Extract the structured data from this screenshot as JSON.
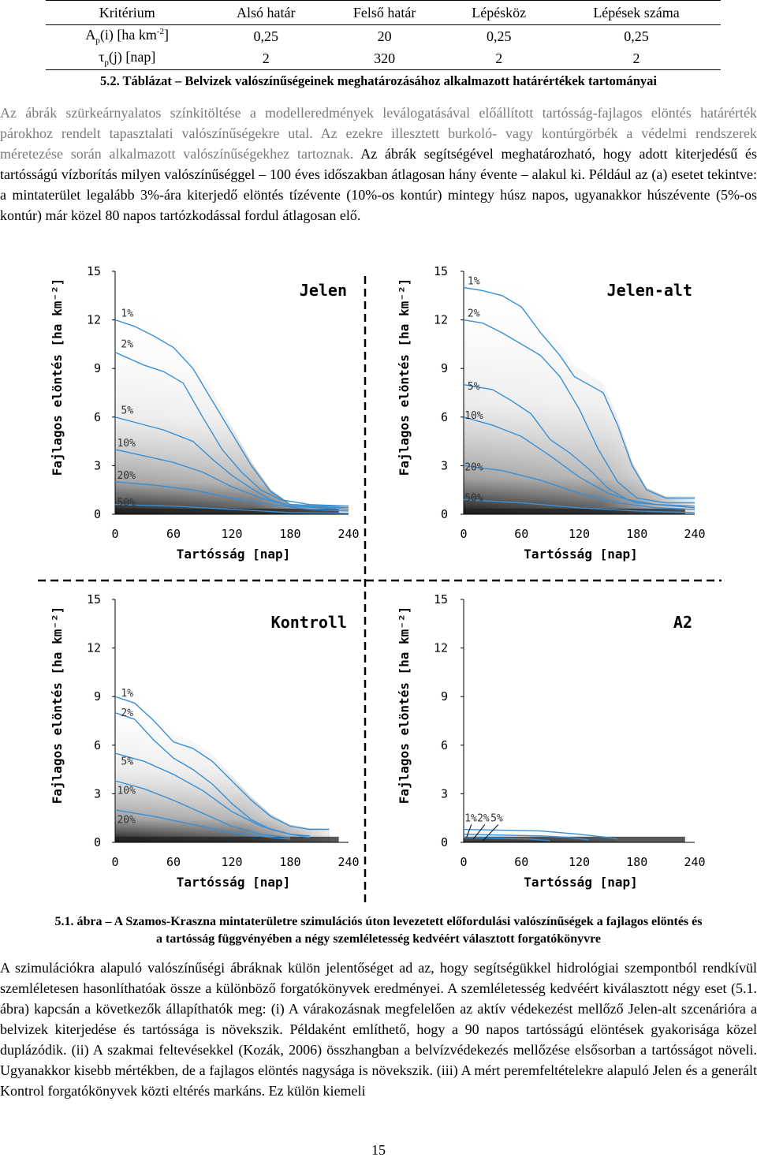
{
  "table": {
    "headers": [
      "Kritérium",
      "Alsó határ",
      "Felső határ",
      "Lépésköz",
      "Lépések száma"
    ],
    "rows": [
      {
        "crit_sym": "A",
        "crit_sub": "p",
        "crit_rest": "(i) [ha km",
        "crit_sup": "-2",
        "crit_end": "]",
        "cells": [
          "0,25",
          "20",
          "0,25",
          "0,25"
        ]
      },
      {
        "crit_sym": "τ",
        "crit_sub": "p",
        "crit_rest": "(j) [nap]",
        "crit_sup": "",
        "crit_end": "",
        "cells": [
          "2",
          "320",
          "2",
          "2"
        ]
      }
    ]
  },
  "table_caption": "5.2. Táblázat – Belvizek valószínűségeinek meghatározásához alkalmazott határértékek tartományai",
  "para1": {
    "gray": "Az ábrák szürkeárnyalatos színkitöltése a modelleredmények leválogatásával előállított tartósság-fajlagos elöntés határérték párokhoz rendelt tapasztalati valószínűségekre utal. Az ezekre illesztett burkoló- vagy kontúrgörbék a védelmi rendszerek méretezése során alkalmazott valószínűségekhez tartoznak.",
    "dark": " Az ábrák segítségével meghatározható, hogy adott kiterjedésű és tartósságú vízborítás milyen valószínűséggel – 100 éves időszakban átlagosan hány évente – alakul ki. Például az (a) esetet tekintve: a mintaterület legalább 3%-ára kiterjedő elöntés tízévente (10%-os kontúr) mintegy húsz napos, ugyanakkor húszévente (5%-os kontúr) már közel 80 napos tartózkodással fordul átlagosan elő."
  },
  "chart_data": [
    {
      "type": "line",
      "title": "Jelen",
      "xlabel": "Tartósság [nap]",
      "ylabel": "Fajlagos elöntés [ha km⁻²]",
      "x_ticks": [
        "0",
        "60",
        "120",
        "180",
        "240"
      ],
      "y_ticks": [
        "0",
        "3",
        "6",
        "9",
        "12",
        "15"
      ],
      "xlim": [
        0,
        240
      ],
      "ylim": [
        0,
        15
      ],
      "series": [
        {
          "name": "1%",
          "points": [
            [
              0,
              12
            ],
            [
              20,
              11.6
            ],
            [
              40,
              11.0
            ],
            [
              60,
              10.3
            ],
            [
              80,
              9.0
            ],
            [
              100,
              7.0
            ],
            [
              120,
              5.0
            ],
            [
              140,
              3.0
            ],
            [
              160,
              1.4
            ],
            [
              180,
              0.6
            ],
            [
              210,
              0.5
            ],
            [
              240,
              0.5
            ]
          ]
        },
        {
          "name": "2%",
          "points": [
            [
              0,
              10
            ],
            [
              30,
              9.2
            ],
            [
              50,
              8.8
            ],
            [
              70,
              8.1
            ],
            [
              90,
              6.0
            ],
            [
              110,
              4.0
            ],
            [
              130,
              2.6
            ],
            [
              150,
              1.5
            ],
            [
              170,
              0.9
            ],
            [
              200,
              0.6
            ],
            [
              240,
              0.5
            ]
          ]
        },
        {
          "name": "5%",
          "points": [
            [
              0,
              6
            ],
            [
              25,
              5.6
            ],
            [
              50,
              5.2
            ],
            [
              80,
              4.5
            ],
            [
              100,
              3.4
            ],
            [
              120,
              2.4
            ],
            [
              140,
              1.6
            ],
            [
              160,
              0.9
            ],
            [
              180,
              0.5
            ],
            [
              240,
              0.4
            ]
          ]
        },
        {
          "name": "10%",
          "points": [
            [
              0,
              4
            ],
            [
              30,
              3.6
            ],
            [
              60,
              3.2
            ],
            [
              90,
              2.6
            ],
            [
              120,
              1.7
            ],
            [
              150,
              1.0
            ],
            [
              180,
              0.5
            ],
            [
              240,
              0.3
            ]
          ]
        },
        {
          "name": "20%",
          "points": [
            [
              0,
              2
            ],
            [
              40,
              1.8
            ],
            [
              80,
              1.5
            ],
            [
              120,
              1.0
            ],
            [
              160,
              0.6
            ],
            [
              200,
              0.3
            ],
            [
              240,
              0.2
            ]
          ]
        },
        {
          "name": "50%",
          "points": [
            [
              0,
              0.6
            ],
            [
              60,
              0.5
            ],
            [
              120,
              0.3
            ],
            [
              180,
              0.1
            ],
            [
              240,
              0.05
            ]
          ]
        }
      ]
    },
    {
      "type": "line",
      "title": "Jelen-alt",
      "xlabel": "Tartósság [nap]",
      "ylabel": "Fajlagos elöntés [ha km⁻²]",
      "x_ticks": [
        "0",
        "60",
        "120",
        "180",
        "240"
      ],
      "y_ticks": [
        "0",
        "3",
        "6",
        "9",
        "12",
        "15"
      ],
      "xlim": [
        0,
        240
      ],
      "ylim": [
        0,
        15
      ],
      "series": [
        {
          "name": "1%",
          "points": [
            [
              0,
              14
            ],
            [
              20,
              13.8
            ],
            [
              40,
              13.5
            ],
            [
              60,
              12.8
            ],
            [
              80,
              11.2
            ],
            [
              100,
              9.8
            ],
            [
              115,
              8.5
            ],
            [
              130,
              8.0
            ],
            [
              145,
              7.5
            ],
            [
              160,
              5.5
            ],
            [
              175,
              3.0
            ],
            [
              190,
              1.5
            ],
            [
              210,
              1.0
            ],
            [
              240,
              1.0
            ]
          ]
        },
        {
          "name": "2%",
          "points": [
            [
              0,
              12
            ],
            [
              20,
              11.8
            ],
            [
              40,
              11.2
            ],
            [
              60,
              10.5
            ],
            [
              80,
              9.8
            ],
            [
              100,
              8.5
            ],
            [
              120,
              6.5
            ],
            [
              140,
              4.0
            ],
            [
              160,
              2.0
            ],
            [
              180,
              1.0
            ],
            [
              210,
              0.7
            ],
            [
              240,
              0.7
            ]
          ]
        },
        {
          "name": "5%",
          "points": [
            [
              0,
              8
            ],
            [
              30,
              7.7
            ],
            [
              50,
              7.0
            ],
            [
              70,
              6.2
            ],
            [
              90,
              4.6
            ],
            [
              110,
              3.8
            ],
            [
              130,
              2.8
            ],
            [
              150,
              1.6
            ],
            [
              170,
              0.9
            ],
            [
              200,
              0.6
            ],
            [
              240,
              0.5
            ]
          ]
        },
        {
          "name": "10%",
          "points": [
            [
              0,
              6
            ],
            [
              30,
              5.5
            ],
            [
              60,
              4.8
            ],
            [
              90,
              3.6
            ],
            [
              120,
              2.3
            ],
            [
              150,
              1.3
            ],
            [
              180,
              0.7
            ],
            [
              240,
              0.4
            ]
          ]
        },
        {
          "name": "20%",
          "points": [
            [
              0,
              3
            ],
            [
              40,
              2.7
            ],
            [
              80,
              2.1
            ],
            [
              120,
              1.3
            ],
            [
              160,
              0.7
            ],
            [
              200,
              0.4
            ],
            [
              240,
              0.3
            ]
          ]
        },
        {
          "name": "50%",
          "points": [
            [
              0,
              0.9
            ],
            [
              60,
              0.7
            ],
            [
              120,
              0.4
            ],
            [
              180,
              0.2
            ],
            [
              240,
              0.1
            ]
          ]
        }
      ]
    },
    {
      "type": "line",
      "title": "Kontroll",
      "xlabel": "Tartósság [nap]",
      "ylabel": "Fajlagos elöntés [ha km⁻²]",
      "x_ticks": [
        "0",
        "60",
        "120",
        "180",
        "240"
      ],
      "y_ticks": [
        "0",
        "3",
        "6",
        "9",
        "12",
        "15"
      ],
      "xlim": [
        0,
        240
      ],
      "ylim": [
        0,
        15
      ],
      "series": [
        {
          "name": "1%",
          "points": [
            [
              0,
              9.0
            ],
            [
              20,
              8.6
            ],
            [
              40,
              7.5
            ],
            [
              60,
              6.2
            ],
            [
              80,
              5.8
            ],
            [
              100,
              5.0
            ],
            [
              120,
              3.8
            ],
            [
              140,
              2.6
            ],
            [
              160,
              1.6
            ],
            [
              180,
              1.0
            ],
            [
              200,
              0.8
            ],
            [
              220,
              0.8
            ]
          ]
        },
        {
          "name": "2%",
          "points": [
            [
              0,
              8.0
            ],
            [
              20,
              7.6
            ],
            [
              40,
              6.3
            ],
            [
              60,
              5.2
            ],
            [
              80,
              4.5
            ],
            [
              100,
              3.6
            ],
            [
              120,
              2.4
            ],
            [
              140,
              1.4
            ],
            [
              160,
              0.8
            ],
            [
              180,
              0.5
            ],
            [
              200,
              0.4
            ]
          ]
        },
        {
          "name": "5%",
          "points": [
            [
              0,
              5.5
            ],
            [
              30,
              5.0
            ],
            [
              60,
              4.2
            ],
            [
              90,
              3.2
            ],
            [
              120,
              1.9
            ],
            [
              150,
              1.0
            ],
            [
              180,
              0.5
            ],
            [
              200,
              0.3
            ]
          ]
        },
        {
          "name": "10%",
          "points": [
            [
              0,
              3.8
            ],
            [
              30,
              3.3
            ],
            [
              60,
              2.6
            ],
            [
              90,
              1.8
            ],
            [
              120,
              1.0
            ],
            [
              150,
              0.5
            ],
            [
              180,
              0.3
            ]
          ]
        },
        {
          "name": "20%",
          "points": [
            [
              0,
              2.0
            ],
            [
              40,
              1.6
            ],
            [
              80,
              1.1
            ],
            [
              120,
              0.6
            ],
            [
              160,
              0.3
            ],
            [
              180,
              0.2
            ]
          ]
        }
      ]
    },
    {
      "type": "line",
      "title": "A2",
      "xlabel": "Tartósság [nap]",
      "ylabel": "Fajlagos elöntés [ha km⁻²]",
      "x_ticks": [
        "0",
        "60",
        "120",
        "180",
        "240"
      ],
      "y_ticks": [
        "0",
        "3",
        "6",
        "9",
        "12",
        "15"
      ],
      "xlim": [
        0,
        240
      ],
      "ylim": [
        0,
        15
      ],
      "series": [
        {
          "name": "1%",
          "points": [
            [
              0,
              0.8
            ],
            [
              40,
              0.75
            ],
            [
              80,
              0.7
            ],
            [
              120,
              0.5
            ],
            [
              150,
              0.3
            ],
            [
              160,
              0.2
            ]
          ]
        },
        {
          "name": "2%",
          "points": [
            [
              0,
              0.5
            ],
            [
              40,
              0.45
            ],
            [
              80,
              0.4
            ],
            [
              110,
              0.3
            ],
            [
              130,
              0.15
            ]
          ]
        },
        {
          "name": "5%",
          "points": [
            [
              0,
              0.3
            ],
            [
              40,
              0.25
            ],
            [
              70,
              0.2
            ],
            [
              90,
              0.1
            ]
          ]
        }
      ]
    }
  ],
  "figure_caption_line1": "5.1. ábra – A Szamos-Kraszna mintaterületre szimulációs úton levezetett előfordulási valószínűségek a fajlagos elöntés és",
  "figure_caption_line2": "a tartósság függvényében a négy szemléletesség kedvéért választott forgatókönyvre",
  "para2": "A szimulációkra alapuló valószínűségi ábráknak külön jelentőséget ad az, hogy segítségükkel hidrológiai szempontból rendkívül szemléletesen hasonlíthatóak össze a különböző forgatókönyvek eredményei. A szemléletesség kedvéért kiválasztott négy eset (5.1. ábra) kapcsán a következők állapíthatók meg: (i) A várakozásnak megfelelően az aktív védekezést mellőző Jelen-alt szcenárióra a belvizek kiterjedése és tartóssága is növekszik. Példaként említhető, hogy a 90 napos tartósságú elöntések gyakorisága közel duplázódik. (ii) A szakmai feltevésekkel (Kozák, 2006) összhangban a belvízvédekezés mellőzése elsősorban a tartósságot növeli. Ugyanakkor kisebb mértékben, de a fajlagos elöntés nagysága is növekszik. (iii) A mért peremfeltételekre alapuló Jelen  és a generált Kontrol forgatókönyvek közti eltérés markáns. Ez külön kiemeli",
  "page_number": "15",
  "colors": {
    "curve": "#3a8fd4",
    "text_gray": "#7a7a7a"
  }
}
